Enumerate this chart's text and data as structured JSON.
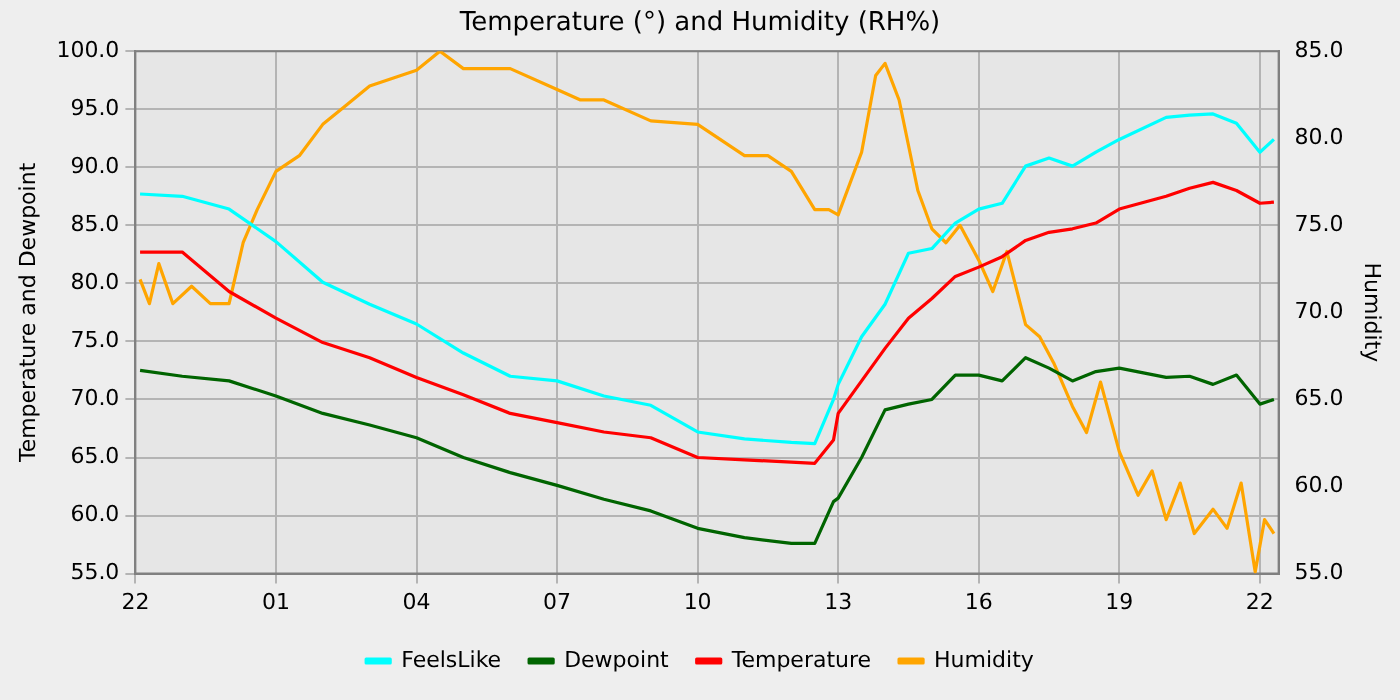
{
  "chart_data": {
    "type": "line",
    "title": "Temperature (°) and Humidity (RH%)",
    "ylabel": "Temperature and Dewpoint",
    "y2label": "Humidity",
    "x": [
      "--01-01T22:06",
      "--01-01T23:00",
      "--01-02T00:00",
      "--01-02T01:00",
      "--01-02T02:00",
      "--01-02T03:00",
      "--01-02T04:00",
      "--01-02T05:00",
      "--01-02T06:00",
      "--01-02T07:00",
      "--01-02T08:00",
      "--01-02T09:00",
      "--01-02T10:00",
      "--01-02T11:00",
      "--01-02T12:00",
      "--01-02T12:30",
      "--01-02T12:54",
      "--01-02T13:00",
      "--01-02T13:30",
      "--01-02T14:00",
      "--01-02T14:30",
      "--01-02T15:00",
      "--01-02T15:30",
      "--01-02T16:00",
      "--01-02T16:30",
      "--01-02T17:00",
      "--01-02T17:30",
      "--01-02T18:00",
      "--01-02T18:30",
      "--01-02T19:00",
      "--01-02T20:00",
      "--01-02T20:30",
      "--01-02T21:00",
      "--01-02T21:30",
      "--01-02T22:00",
      "--01-02T22:18"
    ],
    "series": [
      {
        "name": "FeelsLike",
        "color": "#00ffff",
        "values": [
          87.7,
          87.5,
          86.4,
          83.6,
          80.1,
          78.2,
          76.5,
          74,
          72,
          71.6,
          70.3,
          69.5,
          67.2,
          66.6,
          66.3,
          66.2,
          70,
          71.3,
          75.4,
          78.2,
          82.6,
          83,
          85.2,
          86.4,
          86.9,
          90.1,
          90.8,
          90.1,
          91.3,
          92.4,
          94.3,
          94.5,
          94.6,
          93.8,
          91.3,
          92.4
        ]
      },
      {
        "name": "Dewpoint",
        "color": "#006400",
        "values": [
          72.5,
          72,
          71.6,
          70.3,
          68.8,
          67.8,
          66.7,
          65,
          63.7,
          62.6,
          61.4,
          60.4,
          58.9,
          58.1,
          57.6,
          57.6,
          61.2,
          61.5,
          65,
          69.1,
          69.6,
          70,
          72.1,
          72.1,
          71.6,
          73.6,
          72.7,
          71.6,
          72.4,
          72.7,
          71.9,
          72,
          71.3,
          72.1,
          69.6,
          70
        ]
      },
      {
        "name": "Temperature",
        "color": "#ff0000",
        "values": [
          82.7,
          82.7,
          79.3,
          77,
          74.9,
          73.6,
          71.9,
          70.4,
          68.8,
          68,
          67.2,
          66.7,
          65,
          64.8,
          64.6,
          64.5,
          66.5,
          68.8,
          71.6,
          74.4,
          77,
          78.7,
          80.6,
          81.4,
          82.3,
          83.7,
          84.4,
          84.7,
          85.2,
          86.4,
          87.5,
          88.2,
          88.7,
          88,
          86.9,
          87
        ]
      },
      {
        "name": "Humidity",
        "color": "#ffa500",
        "axis": "y2",
        "x": [
          "--01-01T22:06",
          "--01-01T22:18",
          "--01-01T22:30",
          "--01-01T22:48",
          "--01-01T23:12",
          "--01-01T23:36",
          "--01-02T00:00",
          "--01-02T00:18",
          "--01-02T00:36",
          "--01-02T01:00",
          "--01-02T01:30",
          "--01-02T02:00",
          "--01-02T02:30",
          "--01-02T03:00",
          "--01-02T04:00",
          "--01-02T04:30",
          "--01-02T05:00",
          "--01-02T06:00",
          "--01-02T07:00",
          "--01-02T07:30",
          "--01-02T08:00",
          "--01-02T09:00",
          "--01-02T10:00",
          "--01-02T11:00",
          "--01-02T11:30",
          "--01-02T12:00",
          "--01-02T12:30",
          "--01-02T12:48",
          "--01-02T13:00",
          "--01-02T13:30",
          "--01-02T13:48",
          "--01-02T14:00",
          "--01-02T14:18",
          "--01-02T14:42",
          "--01-02T15:00",
          "--01-02T15:18",
          "--01-02T15:36",
          "--01-02T16:00",
          "--01-02T16:18",
          "--01-02T16:36",
          "--01-02T17:00",
          "--01-02T17:18",
          "--01-02T17:36",
          "--01-02T18:00",
          "--01-02T18:18",
          "--01-02T18:36",
          "--01-02T19:00",
          "--01-02T19:24",
          "--01-02T19:42",
          "--01-02T20:00",
          "--01-02T20:18",
          "--01-02T20:36",
          "--01-02T21:00",
          "--01-02T21:18",
          "--01-02T21:36",
          "--01-02T21:54",
          "--01-02T22:06",
          "--01-02T22:18"
        ],
        "values": [
          71.9,
          70.5,
          72.8,
          70.5,
          71.5,
          70.5,
          70.5,
          74,
          75.9,
          78.1,
          79,
          80.8,
          81.9,
          83,
          83.9,
          85,
          84,
          84,
          82.8,
          82.2,
          82.2,
          81,
          80.8,
          79,
          79,
          78.1,
          75.9,
          75.9,
          75.6,
          79.2,
          83.6,
          84.3,
          82.2,
          77,
          74.8,
          74,
          75,
          73,
          71.2,
          73.5,
          69.3,
          68.6,
          67.1,
          64.6,
          63.1,
          66,
          62,
          59.5,
          60.9,
          58.1,
          60.2,
          57.3,
          58.7,
          57.6,
          60.2,
          55.1,
          58.1,
          57.3
        ]
      }
    ],
    "xlim": [
      "--01-01T22:00",
      "--01-02T22:24"
    ],
    "xticks": [
      {
        "value": "--01-01T22:00",
        "label": "22"
      },
      {
        "value": "--01-02T01:00",
        "label": "01"
      },
      {
        "value": "--01-02T04:00",
        "label": "04"
      },
      {
        "value": "--01-02T07:00",
        "label": "07"
      },
      {
        "value": "--01-02T10:00",
        "label": "10"
      },
      {
        "value": "--01-02T13:00",
        "label": "13"
      },
      {
        "value": "--01-02T16:00",
        "label": "16"
      },
      {
        "value": "--01-02T19:00",
        "label": "19"
      },
      {
        "value": "--01-02T22:00",
        "label": "22"
      }
    ],
    "ylim": [
      55,
      100
    ],
    "yticks": [
      {
        "value": 55,
        "label": "55.0"
      },
      {
        "value": 60,
        "label": "60.0"
      },
      {
        "value": 65,
        "label": "65.0"
      },
      {
        "value": 70,
        "label": "70.0"
      },
      {
        "value": 75,
        "label": "75.0"
      },
      {
        "value": 80,
        "label": "80.0"
      },
      {
        "value": 85,
        "label": "85.0"
      },
      {
        "value": 90,
        "label": "90.0"
      },
      {
        "value": 95,
        "label": "95.0"
      },
      {
        "value": 100,
        "label": "100.0"
      }
    ],
    "y2lim": [
      55,
      85
    ],
    "y2ticks": [
      {
        "value": 55,
        "label": "55.0"
      },
      {
        "value": 60,
        "label": "60.0"
      },
      {
        "value": 65,
        "label": "65.0"
      },
      {
        "value": 70,
        "label": "70.0"
      },
      {
        "value": 75,
        "label": "75.0"
      },
      {
        "value": 80,
        "label": "80.0"
      },
      {
        "value": 85,
        "label": "85.0"
      }
    ],
    "grid": true,
    "legend": "bottom",
    "marker": "none",
    "line_style": "solid"
  }
}
